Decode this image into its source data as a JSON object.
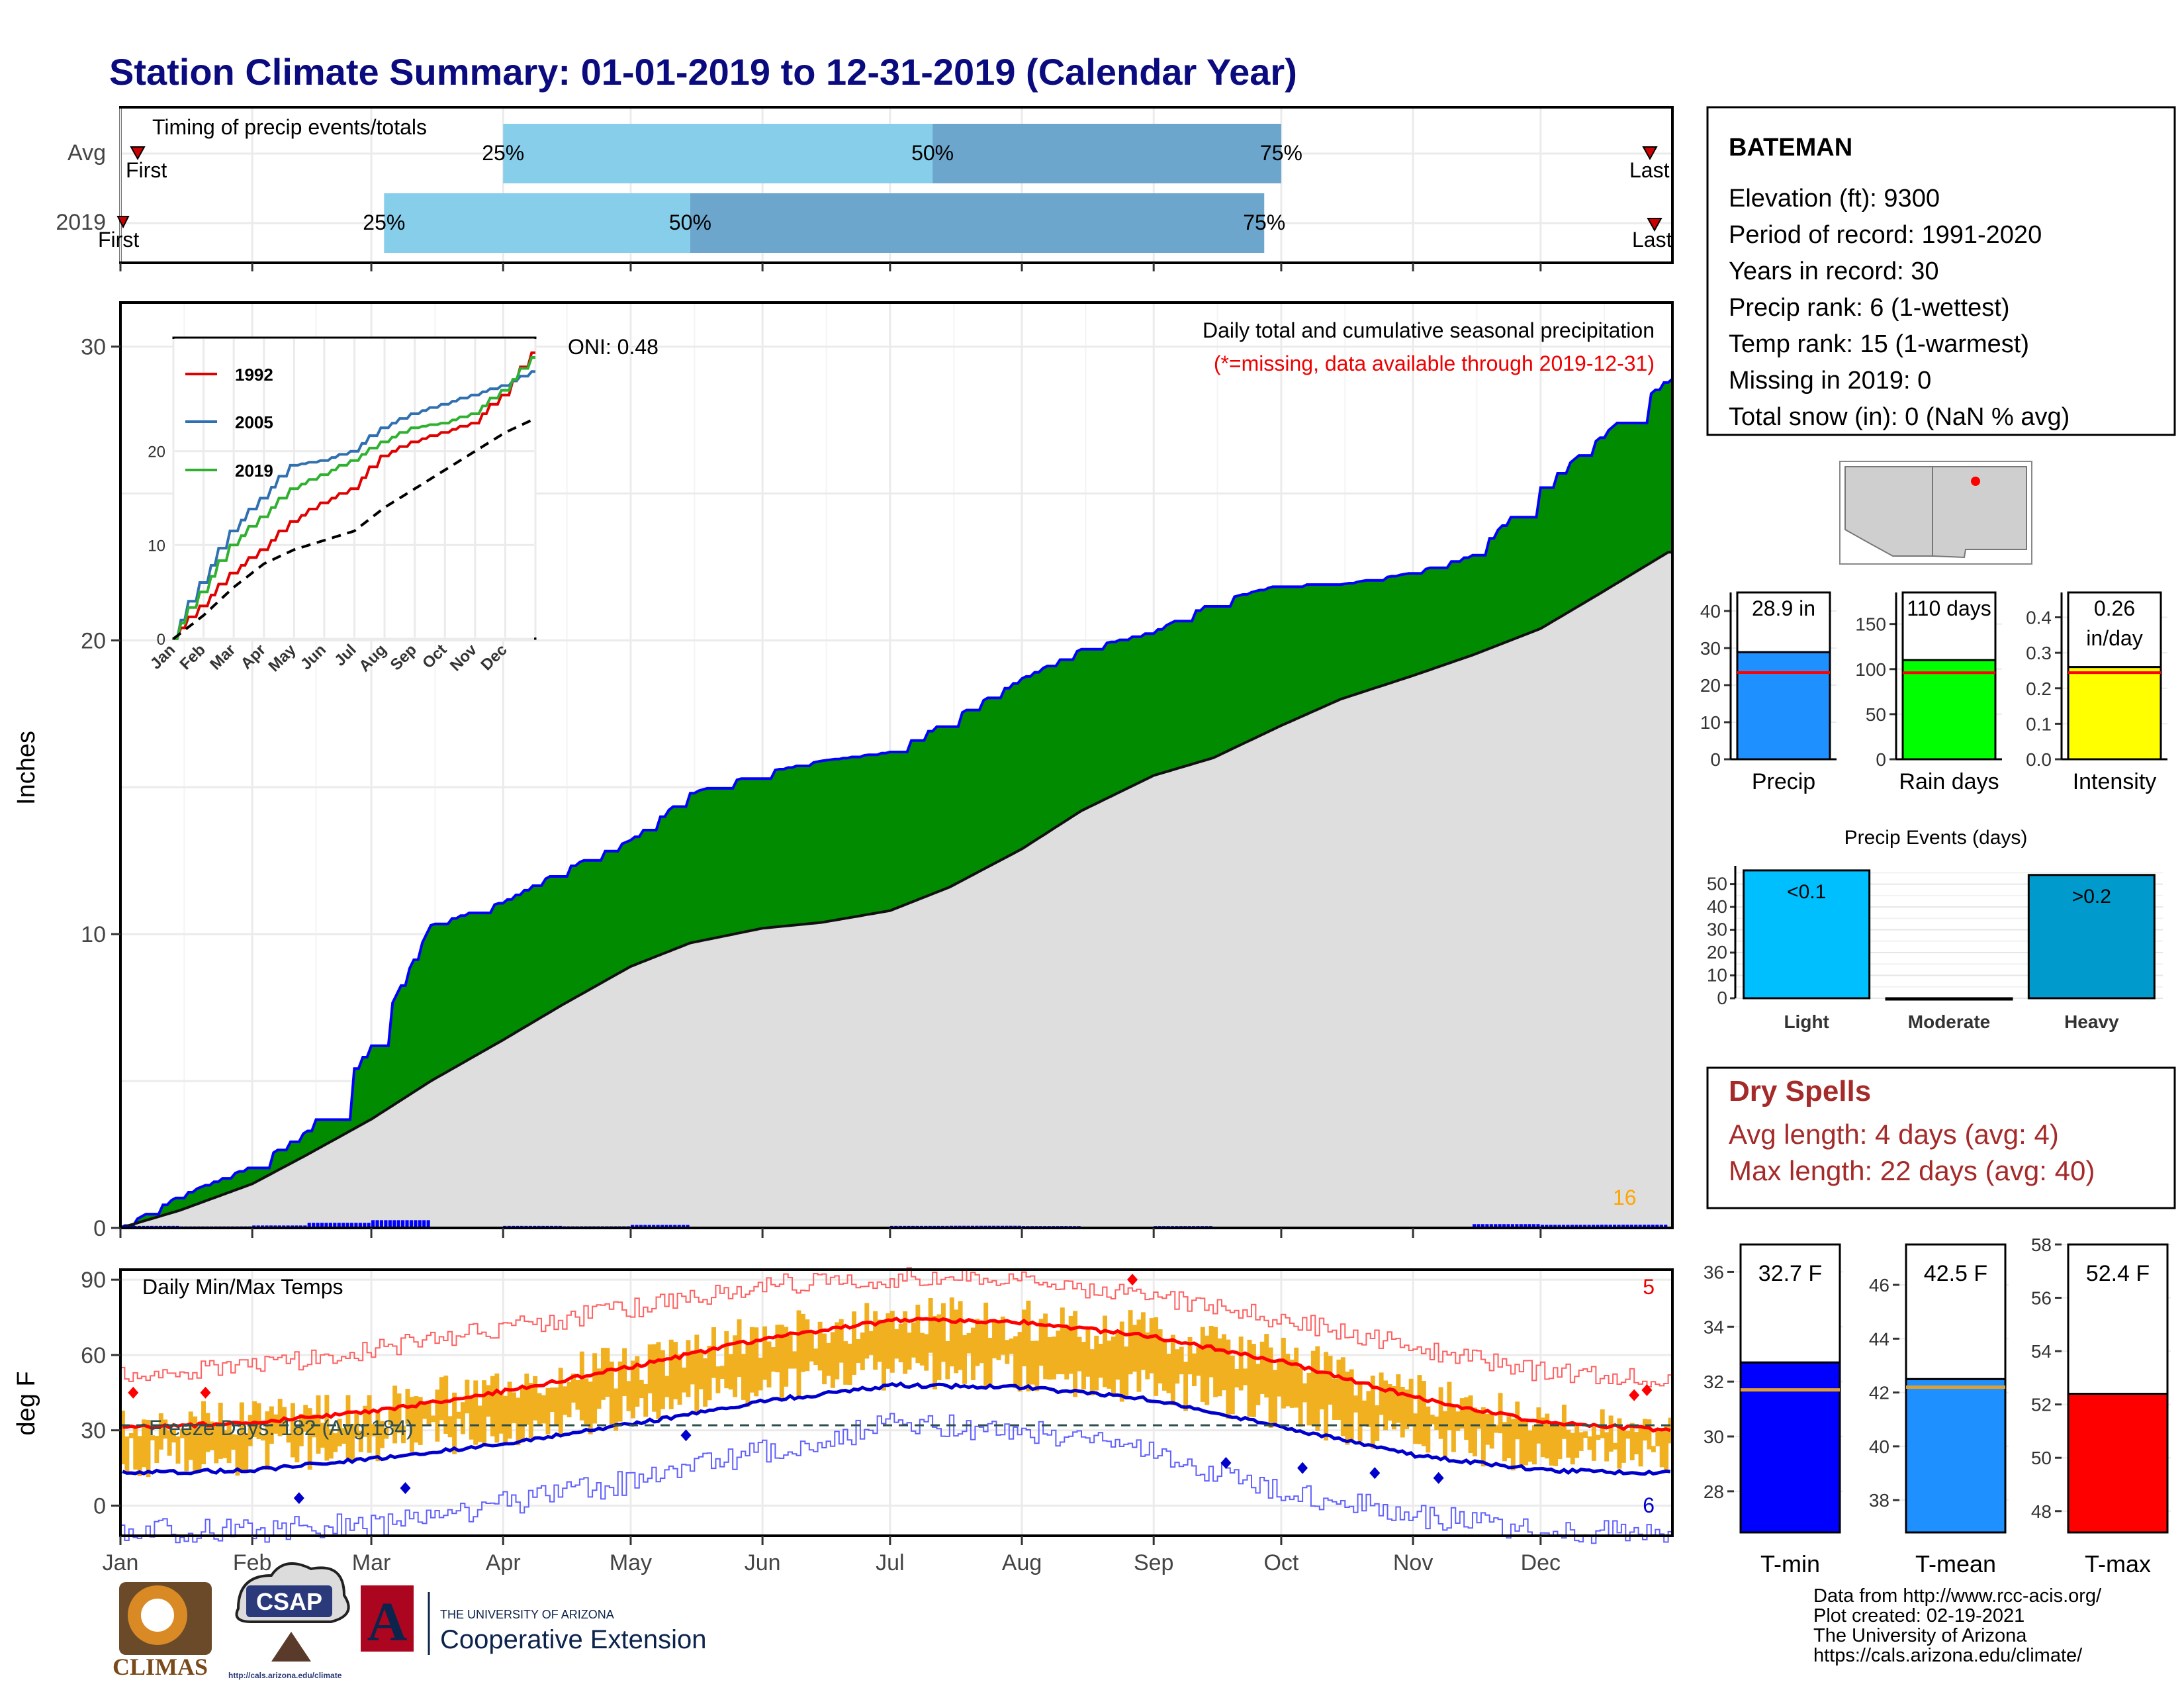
{
  "title": "Station Climate Summary: 01-01-2019 to 12-31-2019 (Calendar Year)",
  "months": [
    "Jan",
    "Feb",
    "Mar",
    "Apr",
    "May",
    "Jun",
    "Jul",
    "Aug",
    "Sep",
    "Oct",
    "Nov",
    "Dec"
  ],
  "colors": {
    "title": "#0b0b80",
    "timing_light": "#87ceeb",
    "timing_dark": "#6ca6cd",
    "cum_green": "#008b00",
    "cum_blue_line": "#0000ff",
    "normal_fill": "#dedede",
    "daily_bar": "#0000ff",
    "extreme_marker": "#ffa500",
    "temp_range_bar": "#f0b020",
    "tmax_line": "#ff0000",
    "tmin_line": "#0000cd",
    "freeze_line": "#2f4f4f",
    "dry_spells_text": "#a52a2a",
    "precip_bar": "#1e90ff",
    "rain_days_bar": "#00ff00",
    "intensity_bar": "#ffff00",
    "light_events_bar": "#00bfff",
    "heavy_events_bar": "#009acd",
    "tmin_bar": "#0000ff",
    "tmean_bar": "#1e90ff",
    "tmax_bar": "#ff0000",
    "avg_line": "#ff0000",
    "temp_avg_line": "#e0a030"
  },
  "timing": {
    "title": "Timing of precip events/totals",
    "rows": [
      {
        "label": "Avg",
        "p25_date": "2019-04-01",
        "p50_date": "2019-07-11",
        "p75_date": "2019-10-01",
        "first_label": "First",
        "last_label": "Last",
        "p25_label": "25%",
        "p50_label": "50%",
        "p75_label": "75%"
      },
      {
        "label": "2019",
        "p25_date": "2019-03-04",
        "p50_date": "2019-05-15",
        "p75_date": "2019-09-27",
        "first_label": "First",
        "last_label": "Last",
        "p25_label": "25%",
        "p50_label": "50%",
        "p75_label": "75%"
      }
    ]
  },
  "precip_panel": {
    "ylabel": "Inches",
    "subtitle": "Daily total and cumulative seasonal precipitation",
    "missing_note": "(*=missing, data available through 2019-12-31)",
    "oni": "ONI: 0.48",
    "extreme_count": "16",
    "y_ticks": [
      "0",
      "10",
      "20",
      "30"
    ]
  },
  "temp_panel": {
    "ylabel": "deg F",
    "title": "Daily Min/Max Temps",
    "freeze_text": "Freeze Days: 182 (Avg:184)",
    "record_high_count": "5",
    "record_low_count": "6",
    "y_ticks": [
      "0",
      "30",
      "60",
      "90"
    ]
  },
  "inset": {
    "legend": [
      "1992",
      "2005",
      "2019"
    ],
    "y_ticks": [
      "0",
      "10",
      "20"
    ]
  },
  "station": {
    "name": "BATEMAN",
    "lines": [
      "Elevation (ft): 9300",
      "Period of record: 1991-2020",
      "Years in record: 30",
      "Precip rank: 6 (1-wettest)",
      "Temp rank: 15 (1-warmest)",
      "Missing in 2019: 0",
      "Total snow (in): 0 (NaN % avg)"
    ]
  },
  "summary_bars": {
    "precip": {
      "label": "Precip",
      "value_text": "28.9 in",
      "value": 28.9,
      "avg": 23.4,
      "ymax": 45,
      "ticks": [
        "0",
        "10",
        "20",
        "30",
        "40"
      ]
    },
    "rain_days": {
      "label": "Rain days",
      "value_text": "110 days",
      "value": 110,
      "avg": 96,
      "ymax": 185,
      "ticks": [
        "0",
        "50",
        "100",
        "150"
      ]
    },
    "intensity": {
      "label": "Intensity",
      "value_text_1": "0.26",
      "value_text_2": "in/day",
      "value": 0.26,
      "avg": 0.244,
      "ymax": 0.47,
      "ticks": [
        "0.0",
        "0.1",
        "0.2",
        "0.3",
        "0.4"
      ]
    }
  },
  "precip_events": {
    "title": "Precip Events (days)",
    "categories": [
      "Light",
      "Moderate",
      "Heavy"
    ],
    "bar_labels": [
      "<0.1",
      "",
      ">0.2"
    ],
    "values": [
      56,
      0,
      54
    ],
    "ticks": [
      "0",
      "10",
      "20",
      "30",
      "40",
      "50"
    ]
  },
  "dry_spells": {
    "title": "Dry Spells",
    "avg_text": "Avg length: 4 days (avg: 4)",
    "max_text": "Max length: 22 days (avg: 40)"
  },
  "temp_bars": {
    "tmin": {
      "label": "T-min",
      "value_text": "32.7 F",
      "value": 32.7,
      "avg": 31.7,
      "ymin": 26.5,
      "ymax": 37,
      "ticks": [
        "28",
        "30",
        "32",
        "34",
        "36"
      ]
    },
    "tmean": {
      "label": "T-mean",
      "value_text": "42.5 F",
      "value": 42.5,
      "avg": 42.2,
      "ymin": 36.8,
      "ymax": 47.5,
      "ticks": [
        "38",
        "40",
        "42",
        "44",
        "46"
      ]
    },
    "tmax": {
      "label": "T-max",
      "value_text": "52.4 F",
      "value": 52.4,
      "avg": 52.7,
      "ymin": 47.2,
      "ymax": 58,
      "ticks": [
        "48",
        "50",
        "52",
        "54",
        "56",
        "58"
      ]
    }
  },
  "footer": {
    "logo_climas": "CLIMAS",
    "logo_csap": "CSAP",
    "logo_csap_url": "http://cals.arizona.edu/climate",
    "ua_small": "THE UNIVERSITY OF ARIZONA",
    "ua_big": "Cooperative Extension",
    "credit_lines": [
      "Data from http://www.rcc-acis.org/",
      "Plot created: 02-19-2021",
      "The University of Arizona",
      "https://cals.arizona.edu/climate/"
    ]
  },
  "chart_data": [
    {
      "type": "bar",
      "title": "Timing of precip events/totals",
      "categories": [
        "Avg",
        "2019"
      ],
      "series": [
        {
          "name": "25%",
          "values": [
            "2019-04-01",
            "2019-03-04"
          ]
        },
        {
          "name": "50%",
          "values": [
            "2019-07-11",
            "2019-05-15"
          ]
        },
        {
          "name": "75%",
          "values": [
            "2019-10-01",
            "2019-09-27"
          ]
        }
      ]
    },
    {
      "type": "area",
      "title": "Daily total and cumulative seasonal precipitation",
      "ylabel": "Inches",
      "ylim": [
        0,
        31.5
      ],
      "xlim": [
        "2019-01-01",
        "2019-12-31"
      ],
      "x": [
        "2019-01-01",
        "2019-01-15",
        "2019-02-01",
        "2019-02-14",
        "2019-03-01",
        "2019-03-15",
        "2019-04-01",
        "2019-04-15",
        "2019-05-01",
        "2019-05-15",
        "2019-06-01",
        "2019-06-15",
        "2019-07-01",
        "2019-07-15",
        "2019-08-01",
        "2019-08-15",
        "2019-09-01",
        "2019-09-15",
        "2019-10-01",
        "2019-10-15",
        "2019-11-01",
        "2019-11-15",
        "2019-12-01",
        "2019-12-15",
        "2019-12-31"
      ],
      "series": [
        {
          "name": "2019",
          "values": [
            0,
            1.1,
            2.1,
            3.3,
            6.2,
            10.3,
            11.1,
            12.2,
            13.2,
            14.8,
            15.5,
            15.9,
            16.2,
            17.3,
            18.7,
            19.7,
            20.3,
            21.3,
            21.9,
            21.9,
            22.3,
            22.9,
            25.2,
            26.9,
            28.9
          ]
        },
        {
          "name": "Avg",
          "values": [
            0,
            0.6,
            1.5,
            2.5,
            3.7,
            5.0,
            6.4,
            7.6,
            8.9,
            9.7,
            10.2,
            10.4,
            10.8,
            11.6,
            12.9,
            14.2,
            15.4,
            16.0,
            17.1,
            18.0,
            18.8,
            19.5,
            20.4,
            21.6,
            23.0
          ]
        }
      ]
    },
    {
      "type": "line",
      "title": "",
      "ylim": [
        0,
        30
      ],
      "x": [
        "Jan",
        "Feb",
        "Mar",
        "Apr",
        "May",
        "Jun",
        "Jul",
        "Aug",
        "Sep",
        "Oct",
        "Nov",
        "Dec",
        "Dec-end"
      ],
      "series": [
        {
          "name": "1992",
          "values": [
            0,
            3.5,
            7.0,
            9.5,
            12.5,
            14.5,
            16.0,
            19.5,
            21.0,
            22.0,
            23.0,
            26.0,
            30.5
          ]
        },
        {
          "name": "2005",
          "values": [
            0,
            6.0,
            11.5,
            15.0,
            18.5,
            19.0,
            20.0,
            22.5,
            24.0,
            25.0,
            26.0,
            27.0,
            28.5
          ]
        },
        {
          "name": "2019",
          "values": [
            0,
            5.0,
            10.0,
            13.0,
            16.0,
            17.5,
            19.0,
            21.0,
            22.5,
            23.0,
            24.0,
            26.5,
            30.0
          ]
        },
        {
          "name": "Avg",
          "values": [
            0,
            2.5,
            5.5,
            8.0,
            9.5,
            10.5,
            11.5,
            14.0,
            16.0,
            18.0,
            20.0,
            22.0,
            23.5
          ]
        }
      ]
    },
    {
      "type": "line",
      "title": "Daily Min/Max Temps",
      "ylabel": "deg F",
      "ylim": [
        -12,
        94
      ],
      "x": [
        "Jan",
        "Feb",
        "Mar",
        "Apr",
        "May",
        "Jun",
        "Jul",
        "Aug",
        "Sep",
        "Oct",
        "Nov",
        "Dec",
        "Dec-end"
      ],
      "series": [
        {
          "name": "Avg max",
          "values": [
            31,
            33,
            38,
            46,
            56,
            67,
            74,
            73,
            67,
            57,
            43,
            33,
            30
          ]
        },
        {
          "name": "Avg min",
          "values": [
            13,
            14,
            19,
            25,
            33,
            42,
            48,
            47,
            42,
            31,
            20,
            14,
            13
          ]
        },
        {
          "name": "Record high",
          "values": [
            52,
            55,
            63,
            71,
            79,
            88,
            91,
            89,
            83,
            74,
            63,
            53,
            50
          ]
        },
        {
          "name": "Record low",
          "values": [
            -10,
            -10,
            -7,
            1,
            10,
            22,
            33,
            30,
            20,
            6,
            -4,
            -10,
            -10
          ]
        }
      ]
    },
    {
      "type": "bar",
      "categories": [
        "Precip",
        "Rain days",
        "Intensity"
      ],
      "values": [
        28.9,
        110,
        0.26
      ]
    },
    {
      "type": "bar",
      "title": "Precip Events (days)",
      "categories": [
        "Light",
        "Moderate",
        "Heavy"
      ],
      "values": [
        56,
        0,
        54
      ]
    },
    {
      "type": "bar",
      "categories": [
        "T-min",
        "T-mean",
        "T-max"
      ],
      "values": [
        32.7,
        42.5,
        52.4
      ]
    }
  ]
}
